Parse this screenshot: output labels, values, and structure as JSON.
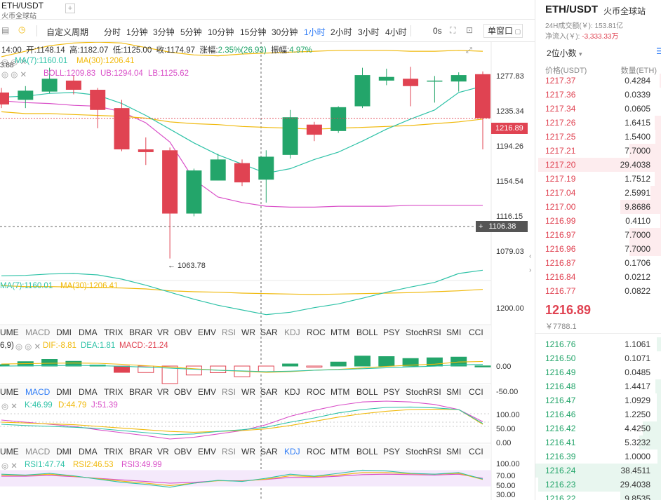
{
  "header": {
    "symbol": "ETH/USDT",
    "exchange": "火币全球站",
    "add": "+"
  },
  "toolbar": {
    "custom": "自定义周期",
    "periods": [
      "分时",
      "1分钟",
      "3分钟",
      "5分钟",
      "10分钟",
      "15分钟",
      "30分钟",
      "1小时",
      "2小时",
      "3小时",
      "4小时"
    ],
    "active_period": "1小时",
    "os": "0s",
    "window": "单窗口"
  },
  "ohlc": {
    "time": "14:00",
    "open_label": "开:",
    "open": "1148.14",
    "high_label": "高:",
    "high": "1182.07",
    "low_label": "低:",
    "low": "1125.00",
    "close_label": "收:",
    "close": "1174.97",
    "chg_label": "涨幅:",
    "chg": "2.35%(26.93)",
    "amp_label": "振幅:",
    "amp": "4.97%"
  },
  "indicators_main": {
    "ma7": "MA(7):1160.01",
    "ma30": "MA(30):1206.41",
    "boll": "BOLL:1209.83",
    "ub": "UB:1294.04",
    "lb": "LB:1125.62",
    "left_cut": "3.88"
  },
  "price_axis": [
    "1277.83",
    "1235.34",
    "1194.26",
    "1154.54",
    "1116.15",
    "1079.03"
  ],
  "current_price": "1216.89",
  "crosshair_price": "1106.38",
  "low_marker": "← 1063.78",
  "vol_panel": {
    "ma7": "MA(7):1160.01",
    "ma30": "MA(30):1206.41",
    "axis": "1200.00"
  },
  "tabs": [
    "UME",
    "MACD",
    "DMI",
    "DMA",
    "TRIX",
    "BRAR",
    "VR",
    "OBV",
    "EMV",
    "RSI",
    "WR",
    "SAR",
    "KDJ",
    "ROC",
    "MTM",
    "BOLL",
    "PSY",
    "StochRSI",
    "SMI",
    "CCI"
  ],
  "macd_panel": {
    "params": "6,9)",
    "dif": "DIF:-8.81",
    "dea": "DEA:1.81",
    "macd": "MACD:-21.24",
    "axis": [
      "0.00",
      "-50.00"
    ]
  },
  "kdj_panel": {
    "k": "K:46.99",
    "d": "D:44.79",
    "j": "J:51.39",
    "axis": [
      "100.00",
      "50.00",
      "0.00"
    ]
  },
  "rsi_panel": {
    "rsi1": "RSI1:47.74",
    "rsi2": "RSI2:46.53",
    "rsi3": "RSI3:49.99",
    "axis": [
      "100.00",
      "70.00",
      "50.00",
      "30.00"
    ]
  },
  "colors": {
    "up": "#23a56a",
    "down": "#e04352",
    "ma7": "#2ec2a7",
    "ma30": "#f0b90b",
    "ub": "#f0b90b",
    "lb": "#d94fc8",
    "accent": "#2f7cf6"
  },
  "chart_data": {
    "type": "candlestick",
    "candles": [
      {
        "o": 1245,
        "c": 1232,
        "h": 1250,
        "l": 1228
      },
      {
        "o": 1237,
        "c": 1247,
        "h": 1252,
        "l": 1228
      },
      {
        "o": 1246,
        "c": 1260,
        "h": 1272,
        "l": 1244
      },
      {
        "o": 1258,
        "c": 1248,
        "h": 1264,
        "l": 1243
      },
      {
        "o": 1248,
        "c": 1226,
        "h": 1250,
        "l": 1206
      },
      {
        "o": 1228,
        "c": 1183,
        "h": 1237,
        "l": 1181
      },
      {
        "o": 1183,
        "c": 1180,
        "h": 1196,
        "l": 1166
      },
      {
        "o": 1182,
        "c": 1113,
        "h": 1185,
        "l": 1064
      },
      {
        "o": 1113,
        "c": 1160,
        "h": 1162,
        "l": 1110
      },
      {
        "o": 1149,
        "c": 1172,
        "h": 1178,
        "l": 1149
      },
      {
        "o": 1168,
        "c": 1147,
        "h": 1172,
        "l": 1143
      },
      {
        "o": 1150,
        "c": 1175,
        "h": 1182,
        "l": 1125
      },
      {
        "o": 1177,
        "c": 1218,
        "h": 1226,
        "l": 1173
      },
      {
        "o": 1210,
        "c": 1199,
        "h": 1213,
        "l": 1192
      },
      {
        "o": 1203,
        "c": 1229,
        "h": 1230,
        "l": 1201
      },
      {
        "o": 1230,
        "c": 1264,
        "h": 1272,
        "l": 1228
      },
      {
        "o": 1258,
        "c": 1262,
        "h": 1271,
        "l": 1253
      },
      {
        "o": 1260,
        "c": 1252,
        "h": 1273,
        "l": 1230
      },
      {
        "o": 1257,
        "c": 1258,
        "h": 1263,
        "l": 1234
      },
      {
        "o": 1257,
        "c": 1264,
        "h": 1267,
        "l": 1246
      },
      {
        "o": 1265,
        "c": 1217,
        "h": 1268,
        "l": 1183
      }
    ],
    "ma7": [
      1240,
      1241,
      1244,
      1245,
      1242,
      1233,
      1220,
      1205,
      1190,
      1177,
      1167,
      1157,
      1162,
      1172,
      1180,
      1192,
      1205,
      1216,
      1226,
      1245,
      1252
    ],
    "ma30": [
      1224,
      1222,
      1222,
      1221,
      1220,
      1219,
      1217,
      1213,
      1211,
      1210,
      1208,
      1207,
      1206,
      1205,
      1206,
      1207,
      1208,
      1209,
      1211,
      1213,
      1216
    ],
    "ub": [
      1284,
      1290,
      1296,
      1299,
      1300,
      1299,
      1294,
      1289,
      1286,
      1285,
      1287,
      1288,
      1289,
      1290,
      1291,
      1291,
      1291,
      1290,
      1290,
      1291,
      1290
    ],
    "lb": [
      1236,
      1234,
      1233,
      1231,
      1230,
      1224,
      1212,
      1191,
      1150,
      1131,
      1125,
      1121,
      1120,
      1120,
      1121,
      1121,
      1121,
      1122,
      1122,
      1122,
      1122
    ],
    "price_range": [
      1040,
      1300
    ]
  },
  "orderbook": {
    "title": "ETH/USDT",
    "exchange": "火币全球站",
    "vol24h": "24H成交额(￥): 153.81亿",
    "netflow_label": "净流入(￥):",
    "netflow": "-3,333.33万",
    "precision": "2位小数",
    "col_price": "价格(USDT)",
    "col_qty": "数量(ETH)",
    "asks": [
      [
        "1217.37",
        "0.4284"
      ],
      [
        "1217.36",
        "0.0339"
      ],
      [
        "1217.34",
        "0.0605"
      ],
      [
        "1217.26",
        "1.6415"
      ],
      [
        "1217.25",
        "1.5400"
      ],
      [
        "1217.21",
        "7.7000"
      ],
      [
        "1217.20",
        "29.4038"
      ],
      [
        "1217.19",
        "1.7512"
      ],
      [
        "1217.04",
        "2.5991"
      ],
      [
        "1217.00",
        "9.8686"
      ],
      [
        "1216.99",
        "0.4110"
      ],
      [
        "1216.97",
        "7.7000"
      ],
      [
        "1216.96",
        "7.7000"
      ],
      [
        "1216.87",
        "0.1706"
      ],
      [
        "1216.84",
        "0.0212"
      ],
      [
        "1216.77",
        "0.0822"
      ]
    ],
    "last_price": "1216.89",
    "last_cny": "￥7788.1",
    "bids": [
      [
        "1216.76",
        "1.1061"
      ],
      [
        "1216.50",
        "0.1071"
      ],
      [
        "1216.49",
        "0.0485"
      ],
      [
        "1216.48",
        "1.4417"
      ],
      [
        "1216.47",
        "1.0929"
      ],
      [
        "1216.46",
        "1.2250"
      ],
      [
        "1216.42",
        "4.4250"
      ],
      [
        "1216.41",
        "5.3232"
      ],
      [
        "1216.39",
        "1.0000"
      ],
      [
        "1216.24",
        "38.4511"
      ],
      [
        "1216.23",
        "29.4038"
      ],
      [
        "1216.22",
        "9.8535"
      ]
    ]
  }
}
